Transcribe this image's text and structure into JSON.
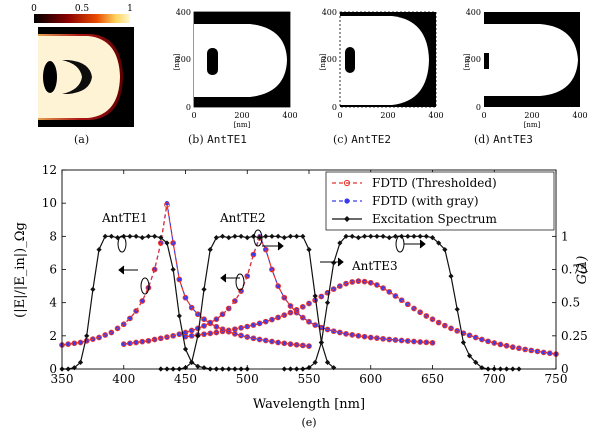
{
  "panels": {
    "a": {
      "caption": "(a)",
      "colorbar": {
        "ticks": [
          "0",
          "0.5",
          "1"
        ]
      }
    },
    "b": {
      "caption": "(b)",
      "name": "AntTE1",
      "yticks": [
        "400",
        "200",
        "0"
      ],
      "xticks": [
        "0",
        "200",
        "400"
      ],
      "xlabel": "[nm]",
      "ylabel": "[nm]"
    },
    "c": {
      "caption": "(c)",
      "name": "AntTE2",
      "yticks": [
        "400",
        "200",
        "0"
      ],
      "xticks": [
        "0",
        "200",
        "400"
      ],
      "xlabel": "",
      "ylabel": "[nm]"
    },
    "d": {
      "caption": "(d)",
      "name": "AntTE3",
      "yticks": [
        "400",
        "200",
        "0"
      ],
      "xticks": [
        "0",
        "200",
        "400"
      ],
      "xlabel": "[nm]",
      "ylabel": "[nm]"
    }
  },
  "colors": {
    "thresholded": "#e8322a",
    "gray": "#3a3af0",
    "excitation": "#111111",
    "hot_bright": "#ffdd66",
    "hot_dark": "#b01010"
  },
  "chart_data": {
    "type": "line",
    "caption": "(e)",
    "xlabel": "Wavelength [nm]",
    "ylabel_left": "(|E|/|E_in|)_Ωg",
    "ylabel_right": "G(λ)",
    "xlim": [
      350,
      750
    ],
    "ylim_left": [
      0,
      12
    ],
    "ylim_right": [
      0,
      1.5
    ],
    "xticks": [
      350,
      400,
      450,
      500,
      550,
      600,
      650,
      700,
      750
    ],
    "yticks_left": [
      0,
      2,
      4,
      6,
      8,
      10,
      12
    ],
    "yticks_right": [
      0,
      0.25,
      0.5,
      0.75,
      1
    ],
    "ytick_labels_right": [
      "0",
      "0.25",
      "0.5",
      "0.75",
      "1"
    ],
    "legend_position": "top-right",
    "legend": [
      "FDTD (Thresholded)",
      "FDTD (with gray)",
      "Excitation Spectrum"
    ],
    "annotations": [
      "AntTE1",
      "AntTE2",
      "AntTE3"
    ],
    "series": [
      {
        "name": "FDTD (with gray)",
        "axis": "left",
        "group": "AntTE1",
        "x": [
          350,
          355,
          360,
          365,
          370,
          375,
          380,
          385,
          390,
          395,
          400,
          405,
          410,
          415,
          420,
          425,
          430,
          435,
          440,
          445,
          450,
          455,
          460,
          465,
          470,
          475,
          480,
          485,
          490,
          495,
          500,
          505,
          510,
          515,
          520,
          525,
          530,
          535,
          540,
          545,
          550
        ],
        "y": [
          1.45,
          1.5,
          1.55,
          1.6,
          1.7,
          1.8,
          1.9,
          2.05,
          2.2,
          2.45,
          2.7,
          3.05,
          3.5,
          4.1,
          4.9,
          6.0,
          7.6,
          10.0,
          7.6,
          5.4,
          4.3,
          3.7,
          3.3,
          3.0,
          2.75,
          2.55,
          2.4,
          2.25,
          2.12,
          2.02,
          1.93,
          1.85,
          1.78,
          1.72,
          1.66,
          1.6,
          1.55,
          1.5,
          1.46,
          1.42,
          1.38
        ]
      },
      {
        "name": "FDTD (Thresholded)",
        "axis": "left",
        "group": "AntTE1",
        "x": [
          350,
          355,
          360,
          365,
          370,
          375,
          380,
          385,
          390,
          395,
          400,
          405,
          410,
          415,
          420,
          425,
          430,
          435,
          440,
          445,
          450,
          455,
          460,
          465,
          470,
          475,
          480,
          485,
          490,
          495,
          500,
          505,
          510,
          515,
          520,
          525,
          530,
          535,
          540,
          545,
          550
        ],
        "y": [
          1.45,
          1.5,
          1.55,
          1.6,
          1.7,
          1.8,
          1.9,
          2.05,
          2.2,
          2.45,
          2.7,
          3.05,
          3.5,
          4.1,
          4.9,
          6.0,
          7.6,
          9.9,
          7.6,
          5.4,
          4.3,
          3.7,
          3.3,
          3.0,
          2.75,
          2.55,
          2.4,
          2.25,
          2.12,
          2.02,
          1.93,
          1.85,
          1.78,
          1.72,
          1.66,
          1.6,
          1.55,
          1.5,
          1.46,
          1.42,
          1.38
        ]
      },
      {
        "name": "FDTD (with gray)",
        "axis": "left",
        "group": "AntTE2",
        "x": [
          400,
          405,
          410,
          415,
          420,
          425,
          430,
          435,
          440,
          445,
          450,
          455,
          460,
          465,
          470,
          475,
          480,
          485,
          490,
          495,
          500,
          505,
          510,
          515,
          520,
          525,
          530,
          535,
          540,
          545,
          550,
          555,
          560,
          565,
          570,
          575,
          580,
          585,
          590,
          595,
          600,
          605,
          610,
          615,
          620,
          625,
          630,
          635,
          640,
          645,
          650
        ],
        "y": [
          1.5,
          1.55,
          1.6,
          1.65,
          1.7,
          1.78,
          1.85,
          1.92,
          2.0,
          2.1,
          2.2,
          2.32,
          2.45,
          2.6,
          2.8,
          3.0,
          3.3,
          3.65,
          4.1,
          4.7,
          5.6,
          6.9,
          8.0,
          7.2,
          6.0,
          5.0,
          4.3,
          3.8,
          3.4,
          3.1,
          2.85,
          2.65,
          2.5,
          2.38,
          2.28,
          2.2,
          2.12,
          2.06,
          2.0,
          1.95,
          1.9,
          1.86,
          1.82,
          1.78,
          1.75,
          1.72,
          1.69,
          1.66,
          1.63,
          1.61,
          1.58
        ]
      },
      {
        "name": "FDTD (Thresholded)",
        "axis": "left",
        "group": "AntTE2",
        "x": [
          400,
          405,
          410,
          415,
          420,
          425,
          430,
          435,
          440,
          445,
          450,
          455,
          460,
          465,
          470,
          475,
          480,
          485,
          490,
          495,
          500,
          505,
          510,
          515,
          520,
          525,
          530,
          535,
          540,
          545,
          550,
          555,
          560,
          565,
          570,
          575,
          580,
          585,
          590,
          595,
          600,
          605,
          610,
          615,
          620,
          625,
          630,
          635,
          640,
          645,
          650
        ],
        "y": [
          1.5,
          1.55,
          1.6,
          1.65,
          1.7,
          1.78,
          1.85,
          1.92,
          2.0,
          2.1,
          2.2,
          2.32,
          2.45,
          2.6,
          2.8,
          3.0,
          3.3,
          3.65,
          4.1,
          4.7,
          5.6,
          6.9,
          7.9,
          7.2,
          6.0,
          5.0,
          4.3,
          3.8,
          3.4,
          3.1,
          2.85,
          2.65,
          2.5,
          2.38,
          2.28,
          2.2,
          2.12,
          2.06,
          2.0,
          1.95,
          1.9,
          1.86,
          1.82,
          1.78,
          1.75,
          1.72,
          1.69,
          1.66,
          1.63,
          1.61,
          1.58
        ]
      },
      {
        "name": "FDTD (with gray)",
        "axis": "left",
        "group": "AntTE3",
        "x": [
          450,
          455,
          460,
          465,
          470,
          475,
          480,
          485,
          490,
          495,
          500,
          505,
          510,
          515,
          520,
          525,
          530,
          535,
          540,
          545,
          550,
          555,
          560,
          565,
          570,
          575,
          580,
          585,
          590,
          595,
          600,
          605,
          610,
          615,
          620,
          625,
          630,
          635,
          640,
          645,
          650,
          655,
          660,
          665,
          670,
          675,
          680,
          685,
          690,
          695,
          700,
          705,
          710,
          715,
          720,
          725,
          730,
          735,
          740,
          745,
          750
        ],
        "y": [
          1.95,
          2.0,
          2.05,
          2.1,
          2.15,
          2.2,
          2.27,
          2.33,
          2.4,
          2.48,
          2.56,
          2.65,
          2.75,
          2.86,
          2.98,
          3.11,
          3.25,
          3.4,
          3.57,
          3.75,
          3.95,
          4.15,
          4.37,
          4.6,
          4.82,
          5.0,
          5.15,
          5.25,
          5.3,
          5.27,
          5.2,
          5.07,
          4.88,
          4.65,
          4.4,
          4.15,
          3.9,
          3.65,
          3.42,
          3.2,
          3.0,
          2.8,
          2.62,
          2.45,
          2.3,
          2.16,
          2.03,
          1.9,
          1.78,
          1.67,
          1.57,
          1.48,
          1.4,
          1.32,
          1.25,
          1.18,
          1.12,
          1.06,
          1.0,
          0.95,
          0.9
        ]
      },
      {
        "name": "FDTD (Thresholded)",
        "axis": "left",
        "group": "AntTE3",
        "x": [
          450,
          455,
          460,
          465,
          470,
          475,
          480,
          485,
          490,
          495,
          500,
          505,
          510,
          515,
          520,
          525,
          530,
          535,
          540,
          545,
          550,
          555,
          560,
          565,
          570,
          575,
          580,
          585,
          590,
          595,
          600,
          605,
          610,
          615,
          620,
          625,
          630,
          635,
          640,
          645,
          650,
          655,
          660,
          665,
          670,
          675,
          680,
          685,
          690,
          695,
          700,
          705,
          710,
          715,
          720,
          725,
          730,
          735,
          740,
          745,
          750
        ],
        "y": [
          1.95,
          2.0,
          2.05,
          2.1,
          2.15,
          2.2,
          2.27,
          2.33,
          2.4,
          2.48,
          2.56,
          2.65,
          2.75,
          2.86,
          2.98,
          3.11,
          3.25,
          3.4,
          3.57,
          3.75,
          3.95,
          4.15,
          4.37,
          4.6,
          4.82,
          5.0,
          5.15,
          5.25,
          5.3,
          5.27,
          5.2,
          5.07,
          4.88,
          4.65,
          4.4,
          4.15,
          3.9,
          3.65,
          3.42,
          3.2,
          3.0,
          2.8,
          2.62,
          2.45,
          2.3,
          2.16,
          2.03,
          1.9,
          1.78,
          1.67,
          1.57,
          1.48,
          1.4,
          1.32,
          1.25,
          1.18,
          1.12,
          1.06,
          1.0,
          0.95,
          0.9
        ]
      },
      {
        "name": "Excitation Spectrum",
        "axis": "right",
        "group": "AntTE1",
        "x": [
          350,
          355,
          360,
          365,
          370,
          375,
          380,
          385,
          390,
          395,
          400,
          405,
          410,
          415,
          420,
          425,
          430,
          435,
          440,
          445,
          450,
          455,
          460,
          465,
          470,
          475,
          480,
          485,
          490,
          495,
          500
        ],
        "y": [
          0,
          0,
          0.01,
          0.05,
          0.25,
          0.6,
          0.9,
          1.0,
          1.0,
          0.99,
          1.0,
          1.0,
          1.0,
          0.99,
          1.0,
          1.0,
          0.99,
          0.95,
          0.75,
          0.4,
          0.15,
          0.05,
          0.02,
          0.01,
          0,
          0,
          0,
          0,
          0,
          0,
          0
        ]
      },
      {
        "name": "Excitation Spectrum",
        "axis": "right",
        "group": "AntTE2",
        "x": [
          430,
          435,
          440,
          445,
          450,
          455,
          460,
          465,
          470,
          475,
          480,
          485,
          490,
          495,
          500,
          505,
          510,
          515,
          520,
          525,
          530,
          535,
          540,
          545,
          550,
          555,
          560,
          565,
          570
        ],
        "y": [
          0,
          0,
          0,
          0,
          0.01,
          0.05,
          0.25,
          0.6,
          0.9,
          0.99,
          1.0,
          0.99,
          1.0,
          1.0,
          0.99,
          1.0,
          0.99,
          1.0,
          1.0,
          1.0,
          0.99,
          1.0,
          1.0,
          1.0,
          0.9,
          0.55,
          0.2,
          0.05,
          0.01
        ]
      },
      {
        "name": "Excitation Spectrum",
        "axis": "right",
        "group": "AntTE3",
        "x": [
          530,
          535,
          540,
          545,
          550,
          555,
          560,
          565,
          570,
          575,
          580,
          585,
          590,
          595,
          600,
          605,
          610,
          615,
          620,
          625,
          630,
          635,
          640,
          645,
          650,
          655,
          660,
          665,
          670,
          675,
          680,
          685,
          690,
          695,
          700,
          705,
          710,
          715,
          720
        ],
        "y": [
          0,
          0,
          0,
          0,
          0.01,
          0.05,
          0.2,
          0.5,
          0.8,
          0.95,
          1.0,
          1.0,
          0.99,
          1.0,
          1.0,
          1.0,
          1.0,
          0.99,
          1.0,
          1.0,
          1.0,
          1.0,
          1.0,
          1.0,
          0.99,
          0.95,
          0.9,
          0.7,
          0.45,
          0.2,
          0.1,
          0.05,
          0.01,
          0,
          0,
          0,
          0,
          0,
          0
        ]
      }
    ]
  }
}
